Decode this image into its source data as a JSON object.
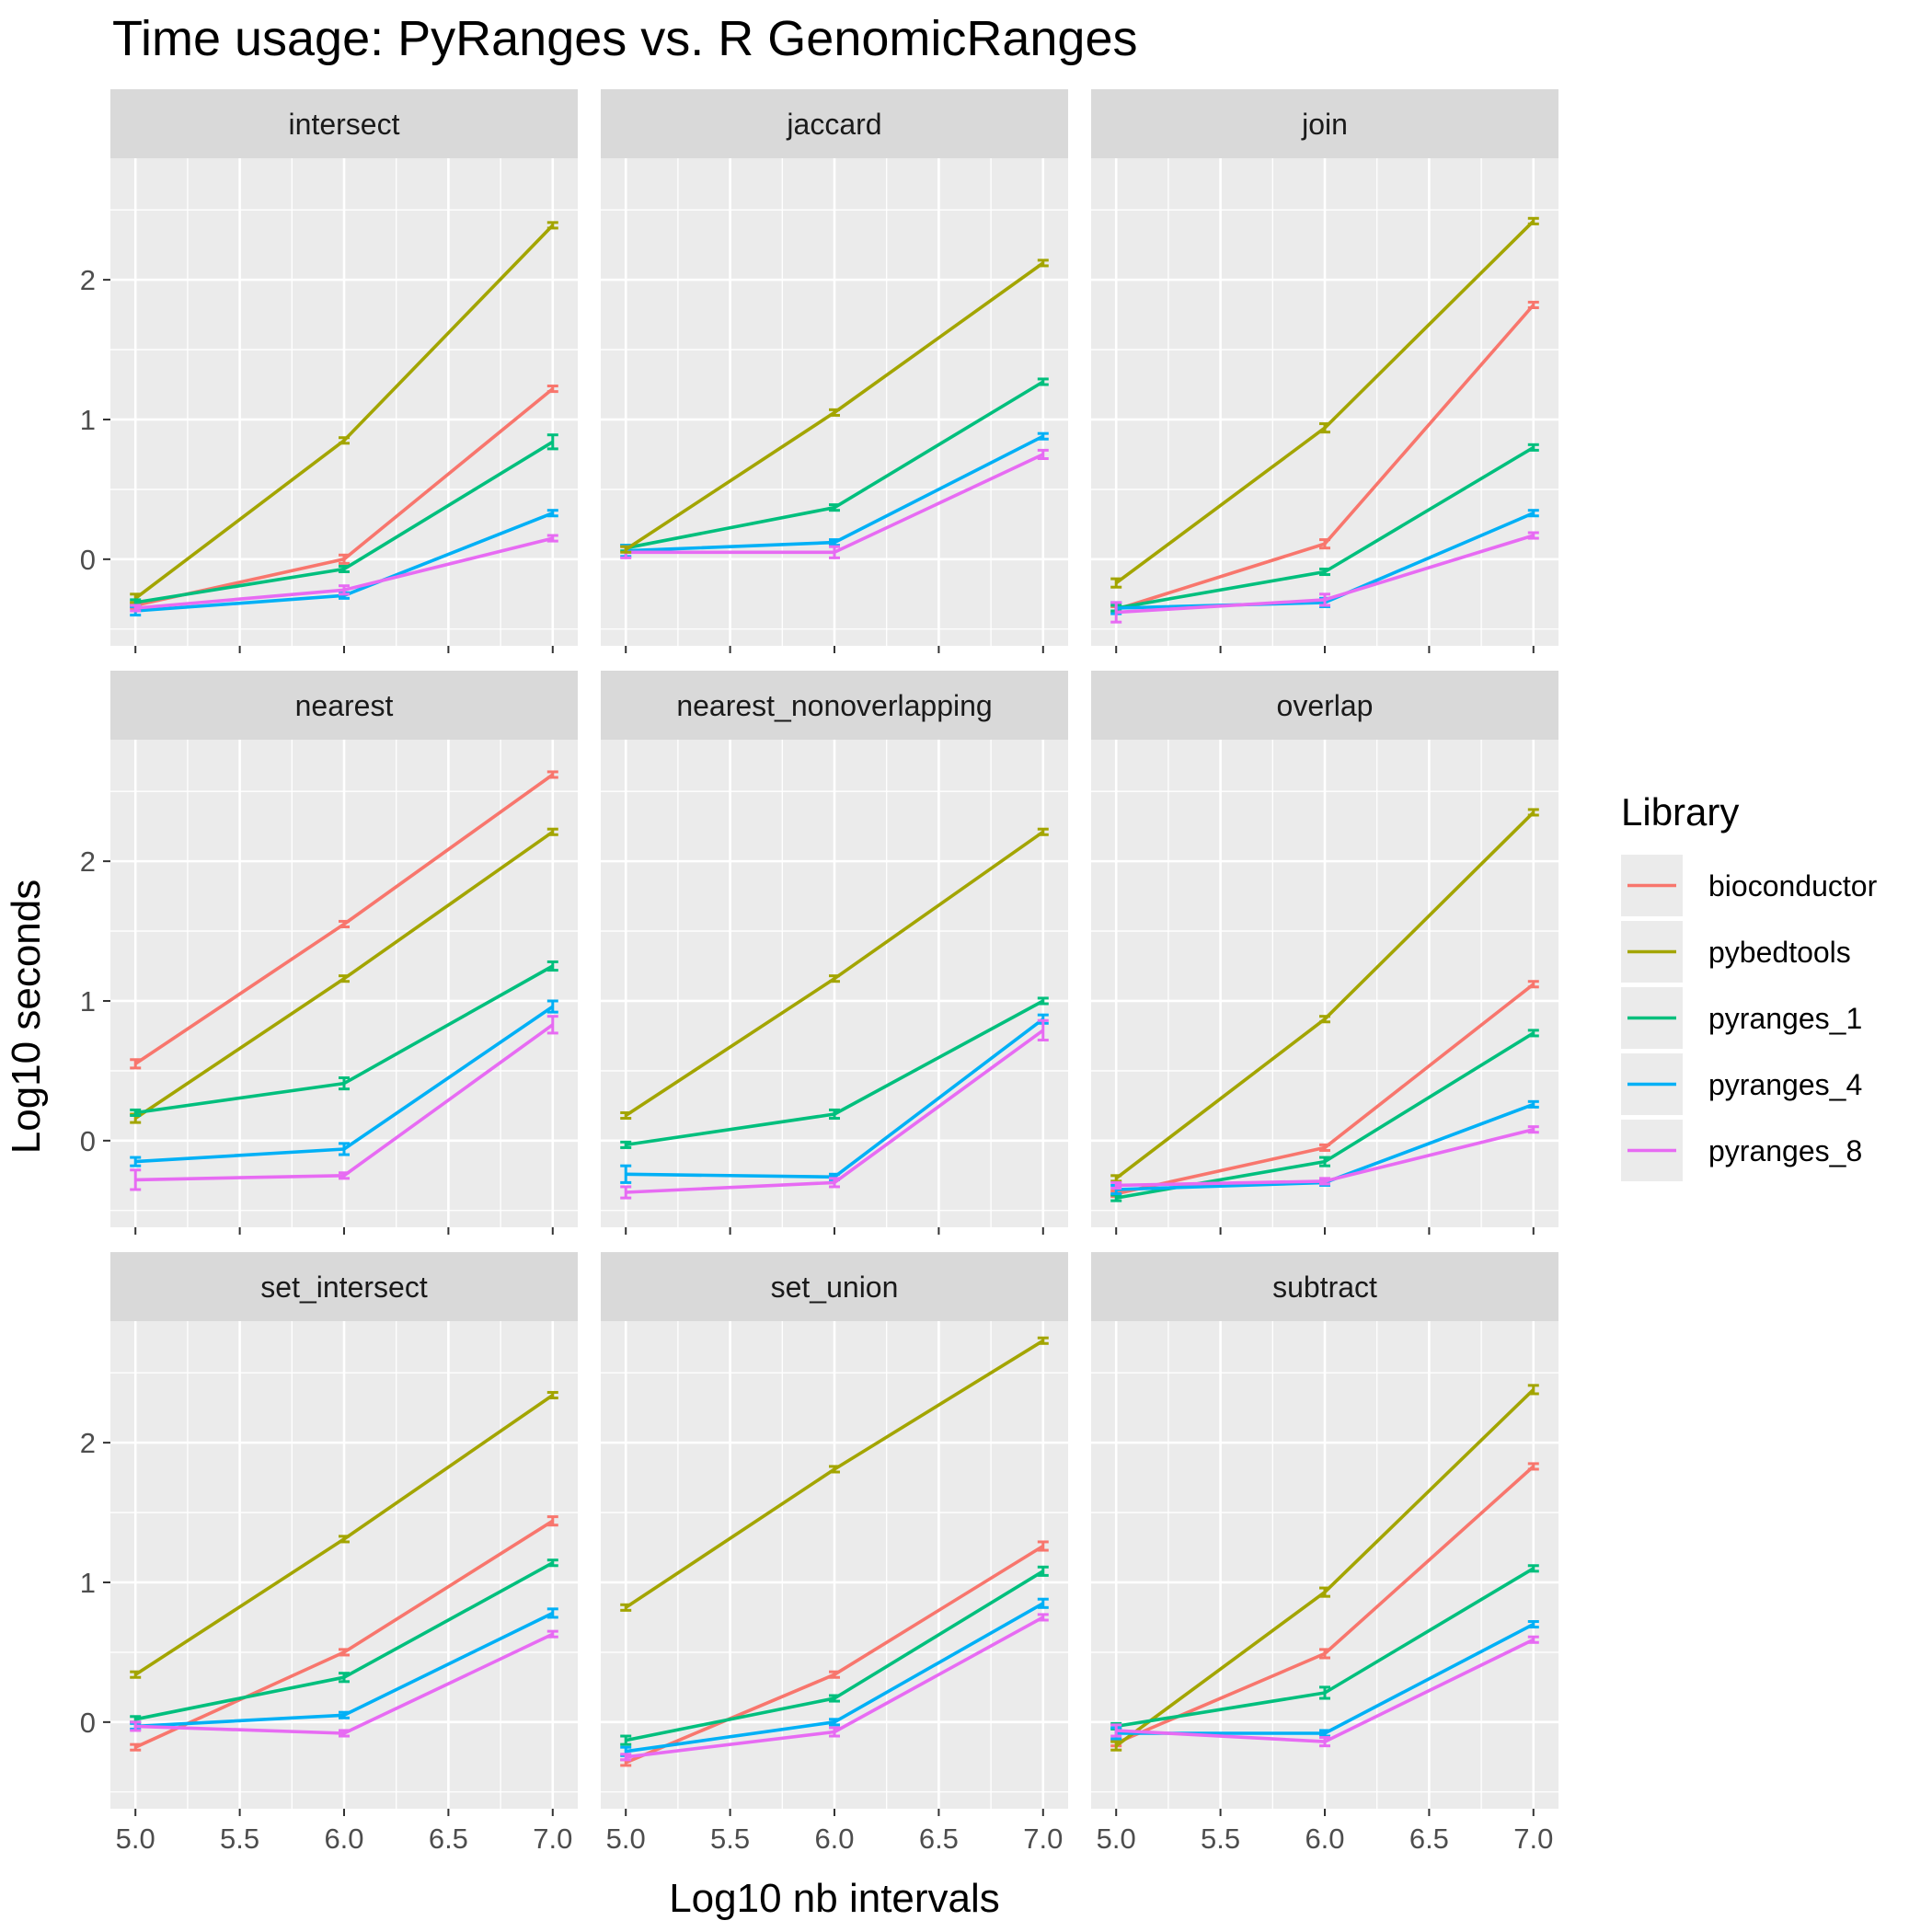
{
  "chart_data": {
    "type": "line",
    "title": "Time usage: PyRanges vs. R GenomicRanges",
    "xlabel": "Log10 nb intervals",
    "ylabel": "Log10 seconds",
    "x": [
      5.0,
      6.0,
      7.0
    ],
    "x_ticks": [
      "5.0",
      "5.5",
      "6.0",
      "6.5",
      "7.0"
    ],
    "y_ticks": [
      "0",
      "1",
      "2"
    ],
    "xlim": [
      4.88,
      7.12
    ],
    "ylim": [
      -0.62,
      2.87
    ],
    "grid": true,
    "legend": {
      "title": "Library",
      "position": "right",
      "entries": [
        "bioconductor",
        "pybedtools",
        "pyranges_1",
        "pyranges_4",
        "pyranges_8"
      ]
    },
    "colors": {
      "bioconductor": "#F8766D",
      "pybedtools": "#A3A500",
      "pyranges_1": "#00BF7D",
      "pyranges_4": "#00B0F6",
      "pyranges_8": "#E76BF3"
    },
    "panels": [
      {
        "name": "intersect",
        "series": [
          {
            "name": "bioconductor",
            "values": [
              -0.33,
              0.0,
              1.22
            ],
            "err": [
              0.02,
              0.03,
              0.02
            ]
          },
          {
            "name": "pybedtools",
            "values": [
              -0.28,
              0.85,
              2.39
            ],
            "err": [
              0.03,
              0.02,
              0.02
            ]
          },
          {
            "name": "pyranges_1",
            "values": [
              -0.31,
              -0.07,
              0.84
            ],
            "err": [
              0.02,
              0.02,
              0.05
            ]
          },
          {
            "name": "pyranges_4",
            "values": [
              -0.37,
              -0.26,
              0.33
            ],
            "err": [
              0.03,
              0.02,
              0.02
            ]
          },
          {
            "name": "pyranges_8",
            "values": [
              -0.35,
              -0.22,
              0.15
            ],
            "err": [
              0.02,
              0.03,
              0.02
            ]
          }
        ]
      },
      {
        "name": "jaccard",
        "series": [
          {
            "name": "pyranges_1",
            "values": [
              0.08,
              0.37,
              1.27
            ],
            "err": [
              0.02,
              0.02,
              0.02
            ]
          },
          {
            "name": "pyranges_4",
            "values": [
              0.06,
              0.12,
              0.88
            ],
            "err": [
              0.04,
              0.02,
              0.02
            ]
          },
          {
            "name": "pyranges_8",
            "values": [
              0.05,
              0.05,
              0.75
            ],
            "err": [
              0.04,
              0.04,
              0.03
            ]
          },
          {
            "name": "pybedtools",
            "values": [
              0.07,
              1.05,
              2.12
            ],
            "err": [
              0.02,
              0.02,
              0.02
            ]
          }
        ]
      },
      {
        "name": "join",
        "series": [
          {
            "name": "bioconductor",
            "values": [
              -0.36,
              0.11,
              1.82
            ],
            "err": [
              0.02,
              0.03,
              0.02
            ]
          },
          {
            "name": "pybedtools",
            "values": [
              -0.17,
              0.94,
              2.42
            ],
            "err": [
              0.03,
              0.03,
              0.02
            ]
          },
          {
            "name": "pyranges_1",
            "values": [
              -0.35,
              -0.09,
              0.8
            ],
            "err": [
              0.02,
              0.02,
              0.02
            ]
          },
          {
            "name": "pyranges_4",
            "values": [
              -0.35,
              -0.31,
              0.33
            ],
            "err": [
              0.04,
              0.03,
              0.02
            ]
          },
          {
            "name": "pyranges_8",
            "values": [
              -0.38,
              -0.29,
              0.17
            ],
            "err": [
              0.07,
              0.04,
              0.02
            ]
          }
        ]
      },
      {
        "name": "nearest",
        "series": [
          {
            "name": "bioconductor",
            "values": [
              0.55,
              1.55,
              2.62
            ],
            "err": [
              0.03,
              0.02,
              0.02
            ]
          },
          {
            "name": "pybedtools",
            "values": [
              0.16,
              1.16,
              2.21
            ],
            "err": [
              0.03,
              0.02,
              0.02
            ]
          },
          {
            "name": "pyranges_1",
            "values": [
              0.2,
              0.41,
              1.25
            ],
            "err": [
              0.02,
              0.04,
              0.03
            ]
          },
          {
            "name": "pyranges_4",
            "values": [
              -0.15,
              -0.06,
              0.96
            ],
            "err": [
              0.03,
              0.04,
              0.04
            ]
          },
          {
            "name": "pyranges_8",
            "values": [
              -0.28,
              -0.25,
              0.83
            ],
            "err": [
              0.07,
              0.02,
              0.06
            ]
          }
        ]
      },
      {
        "name": "nearest_nonoverlapping",
        "series": [
          {
            "name": "pybedtools",
            "values": [
              0.18,
              1.16,
              2.21
            ],
            "err": [
              0.02,
              0.02,
              0.02
            ]
          },
          {
            "name": "pyranges_1",
            "values": [
              -0.03,
              0.19,
              1.0
            ],
            "err": [
              0.02,
              0.03,
              0.02
            ]
          },
          {
            "name": "pyranges_4",
            "values": [
              -0.24,
              -0.26,
              0.87
            ],
            "err": [
              0.06,
              0.02,
              0.03
            ]
          },
          {
            "name": "pyranges_8",
            "values": [
              -0.37,
              -0.3,
              0.79
            ],
            "err": [
              0.04,
              0.03,
              0.07
            ]
          }
        ]
      },
      {
        "name": "overlap",
        "series": [
          {
            "name": "bioconductor",
            "values": [
              -0.38,
              -0.05,
              1.12
            ],
            "err": [
              0.02,
              0.02,
              0.02
            ]
          },
          {
            "name": "pybedtools",
            "values": [
              -0.27,
              0.87,
              2.35
            ],
            "err": [
              0.02,
              0.02,
              0.02
            ]
          },
          {
            "name": "pyranges_1",
            "values": [
              -0.41,
              -0.15,
              0.77
            ],
            "err": [
              0.02,
              0.03,
              0.02
            ]
          },
          {
            "name": "pyranges_4",
            "values": [
              -0.35,
              -0.3,
              0.26
            ],
            "err": [
              0.03,
              0.02,
              0.02
            ]
          },
          {
            "name": "pyranges_8",
            "values": [
              -0.32,
              -0.29,
              0.08
            ],
            "err": [
              0.02,
              0.02,
              0.02
            ]
          }
        ]
      },
      {
        "name": "set_intersect",
        "series": [
          {
            "name": "bioconductor",
            "values": [
              -0.18,
              0.5,
              1.44
            ],
            "err": [
              0.02,
              0.02,
              0.03
            ]
          },
          {
            "name": "pybedtools",
            "values": [
              0.34,
              1.31,
              2.34
            ],
            "err": [
              0.02,
              0.02,
              0.02
            ]
          },
          {
            "name": "pyranges_1",
            "values": [
              0.02,
              0.32,
              1.14
            ],
            "err": [
              0.02,
              0.03,
              0.02
            ]
          },
          {
            "name": "pyranges_4",
            "values": [
              -0.03,
              0.05,
              0.78
            ],
            "err": [
              0.02,
              0.02,
              0.03
            ]
          },
          {
            "name": "pyranges_8",
            "values": [
              -0.03,
              -0.08,
              0.63
            ],
            "err": [
              0.03,
              0.02,
              0.02
            ]
          }
        ]
      },
      {
        "name": "set_union",
        "series": [
          {
            "name": "bioconductor",
            "values": [
              -0.29,
              0.34,
              1.26
            ],
            "err": [
              0.02,
              0.02,
              0.03
            ]
          },
          {
            "name": "pybedtools",
            "values": [
              0.82,
              1.81,
              2.73
            ],
            "err": [
              0.02,
              0.02,
              0.02
            ]
          },
          {
            "name": "pyranges_1",
            "values": [
              -0.13,
              0.17,
              1.08
            ],
            "err": [
              0.03,
              0.02,
              0.03
            ]
          },
          {
            "name": "pyranges_4",
            "values": [
              -0.21,
              0.0,
              0.85
            ],
            "err": [
              0.03,
              0.02,
              0.03
            ]
          },
          {
            "name": "pyranges_8",
            "values": [
              -0.25,
              -0.07,
              0.75
            ],
            "err": [
              0.02,
              0.03,
              0.02
            ]
          }
        ]
      },
      {
        "name": "subtract",
        "series": [
          {
            "name": "bioconductor",
            "values": [
              -0.15,
              0.49,
              1.83
            ],
            "err": [
              0.02,
              0.03,
              0.02
            ]
          },
          {
            "name": "pybedtools",
            "values": [
              -0.17,
              0.93,
              2.38
            ],
            "err": [
              0.03,
              0.03,
              0.03
            ]
          },
          {
            "name": "pyranges_1",
            "values": [
              -0.03,
              0.21,
              1.1
            ],
            "err": [
              0.02,
              0.04,
              0.02
            ]
          },
          {
            "name": "pyranges_4",
            "values": [
              -0.08,
              -0.08,
              0.7
            ],
            "err": [
              0.04,
              0.02,
              0.02
            ]
          },
          {
            "name": "pyranges_8",
            "values": [
              -0.06,
              -0.14,
              0.59
            ],
            "err": [
              0.04,
              0.03,
              0.02
            ]
          }
        ]
      }
    ]
  }
}
